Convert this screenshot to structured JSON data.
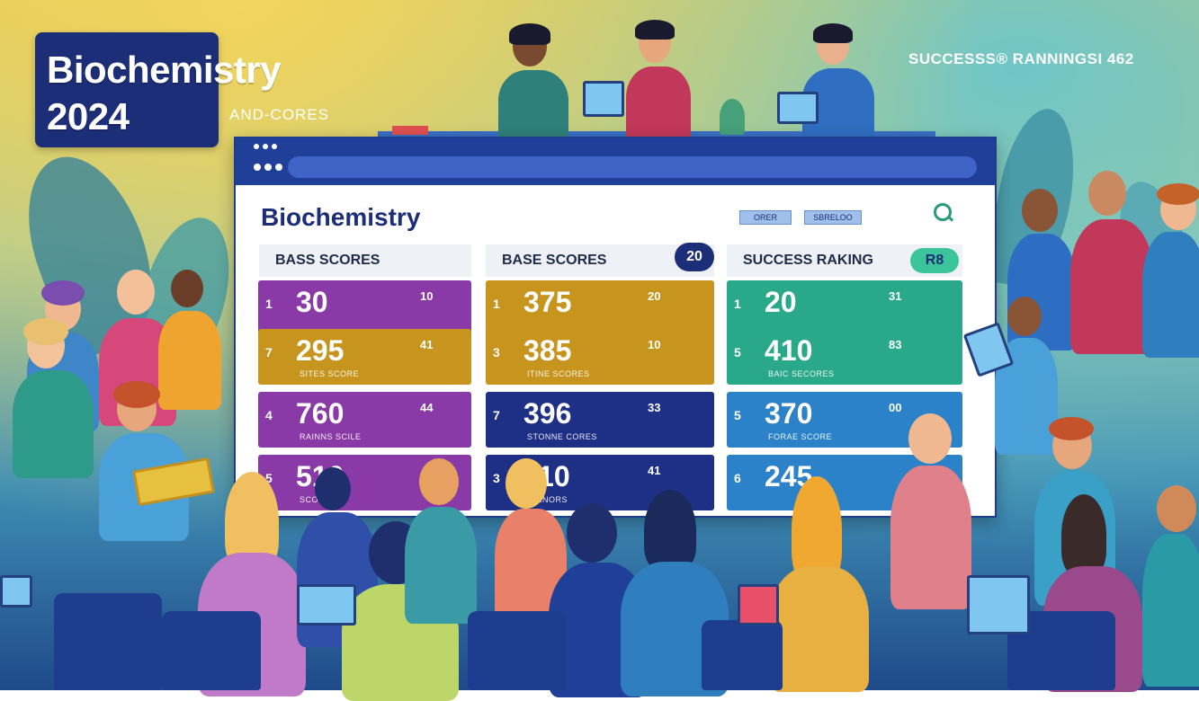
{
  "badge": {
    "line1": "Biochemistry",
    "line2": "2024"
  },
  "subtitle": "AND-CORES",
  "top_right": "SUCCESSS® RANNINGSI 462",
  "window": {
    "title": "Biochemistry",
    "pills": [
      "ORER",
      "SBRELOO"
    ]
  },
  "columns": [
    {
      "header": "BASS SCORES",
      "badge": "",
      "rows": [
        {
          "rank": "1",
          "score": "30",
          "side": "10",
          "caption": ""
        },
        {
          "rank": "7",
          "score": "295",
          "side": "41",
          "caption": "SITES SCORE"
        },
        {
          "rank": "4",
          "score": "760",
          "side": "44",
          "caption": "RAINNS SCILE"
        },
        {
          "rank": "5",
          "score": "510",
          "side": "",
          "caption": "SCORE"
        }
      ]
    },
    {
      "header": "BASE SCORES",
      "badge": "20",
      "rows": [
        {
          "rank": "1",
          "score": "375",
          "side": "20",
          "caption": ""
        },
        {
          "rank": "3",
          "score": "385",
          "side": "10",
          "caption": "ITINE SCORES"
        },
        {
          "rank": "7",
          "score": "396",
          "side": "33",
          "caption": "STONNE CORES"
        },
        {
          "rank": "3",
          "score": "110",
          "side": "41",
          "caption": "RINNORS"
        }
      ]
    },
    {
      "header": "SUCCESS RAKING",
      "badge": "R8",
      "rows": [
        {
          "rank": "1",
          "score": "20",
          "side": "31",
          "caption": ""
        },
        {
          "rank": "5",
          "score": "410",
          "side": "83",
          "caption": "BAIC SECORES"
        },
        {
          "rank": "5",
          "score": "370",
          "side": "00",
          "caption": "FORAE SCORE"
        },
        {
          "rank": "6",
          "score": "245",
          "side": "",
          "caption": ""
        }
      ]
    }
  ],
  "colors": {
    "navy": "#1d2e78",
    "purple": "#8a3aa6",
    "gold": "#c7951d",
    "green": "#2aa88a",
    "blue": "#2b82c9"
  }
}
